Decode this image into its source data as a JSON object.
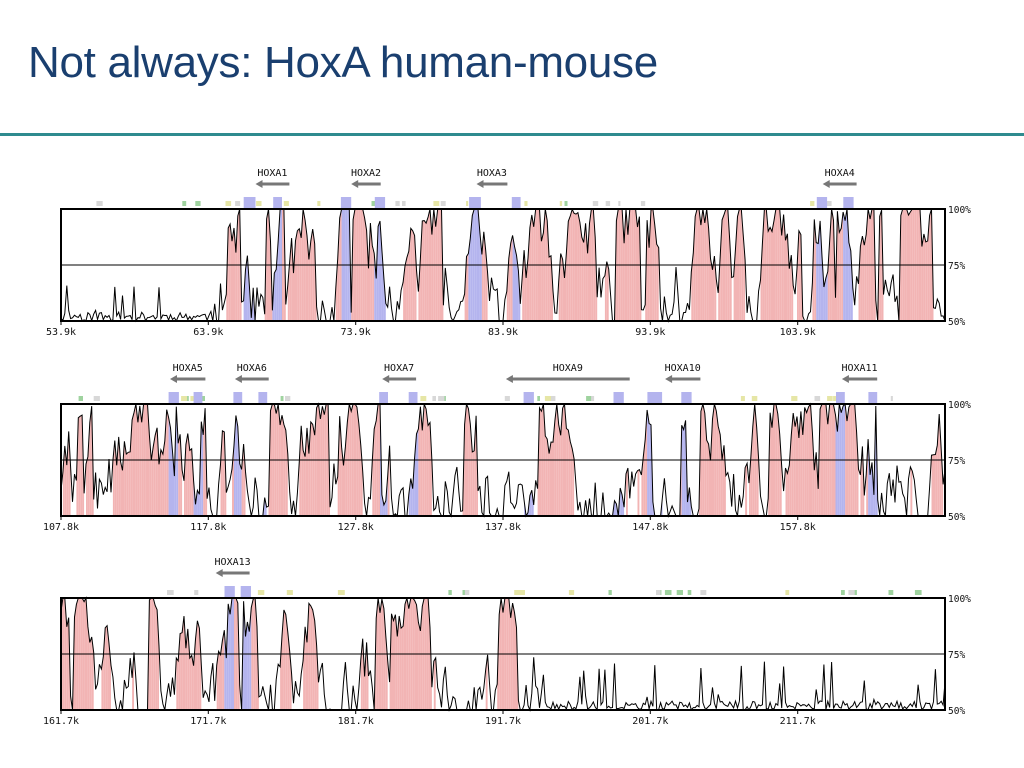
{
  "slide": {
    "title": "Not always: HoxA human-mouse"
  },
  "colors": {
    "title": "#1a3f6f",
    "rule": "#2e8b8f",
    "coding_exon": "#b4b4ee",
    "conserved_noncoding": "#f2b4b4",
    "utr": "#bfe8ee",
    "line": "#000000"
  },
  "chart_data": {
    "type": "area",
    "description_units": "percent identity (VISTA plot), position in kb",
    "y_ticks": [
      "100%",
      "75%",
      "50%"
    ],
    "ylim": [
      50,
      100
    ],
    "panels": [
      {
        "x_ticks": [
          "53.9k",
          "63.9k",
          "73.9k",
          "83.9k",
          "93.9k",
          "103.9k"
        ],
        "xlim": [
          53.9,
          113.9
        ],
        "genes": [
          {
            "label": "HOXA1",
            "start": 69.4,
            "end": 67.1,
            "exons": [
              [
                68.3,
                68.9
              ],
              [
                66.3,
                67.1
              ]
            ]
          },
          {
            "label": "HOXA2",
            "start": 75.6,
            "end": 73.6,
            "exons": [
              [
                75.2,
                75.9
              ],
              [
                72.9,
                73.6
              ]
            ]
          },
          {
            "label": "HOXA3",
            "start": 84.2,
            "end": 82.1,
            "exons": [
              [
                84.5,
                85.1
              ],
              [
                81.6,
                82.4
              ]
            ]
          },
          {
            "label": "HOXA4",
            "start": 107.9,
            "end": 105.6,
            "exons": [
              [
                107.0,
                107.7
              ],
              [
                105.2,
                105.9
              ]
            ]
          }
        ],
        "profile_seed": 11,
        "low_region": [
          53.9,
          64.0
        ]
      },
      {
        "x_ticks": [
          "107.8k",
          "117.8k",
          "127.8k",
          "137.8k",
          "147.8k",
          "157.8k"
        ],
        "xlim": [
          107.8,
          167.8
        ],
        "genes": [
          {
            "label": "HOXA5",
            "start": 117.6,
            "end": 115.2,
            "exons": [
              [
                116.8,
                117.4
              ],
              [
                115.1,
                115.8
              ]
            ]
          },
          {
            "label": "HOXA6",
            "start": 121.9,
            "end": 119.6,
            "exons": [
              [
                121.2,
                121.8
              ],
              [
                119.5,
                120.1
              ]
            ]
          },
          {
            "label": "HOXA7",
            "start": 131.9,
            "end": 129.6,
            "exons": [
              [
                131.4,
                132.0
              ],
              [
                129.4,
                130.0
              ]
            ]
          },
          {
            "label": "HOXA9",
            "start": 146.4,
            "end": 138.0,
            "exons": [
              [
                145.3,
                146.0
              ],
              [
                139.2,
                139.9
              ]
            ]
          },
          {
            "label": "HOXA10",
            "start": 151.2,
            "end": 148.8,
            "exons": [
              [
                149.9,
                150.6
              ],
              [
                147.6,
                148.6
              ]
            ]
          },
          {
            "label": "HOXA11",
            "start": 163.2,
            "end": 160.8,
            "exons": [
              [
                162.6,
                163.2
              ],
              [
                160.4,
                161.0
              ]
            ]
          }
        ],
        "profile_seed": 29,
        "low_region": [
          0,
          0
        ]
      },
      {
        "x_ticks": [
          "161.7k",
          "171.7k",
          "181.7k",
          "191.7k",
          "201.7k",
          "211.7k"
        ],
        "xlim": [
          161.7,
          221.7
        ],
        "genes": [
          {
            "label": "HOXA13",
            "start": 174.5,
            "end": 172.2,
            "exons": [
              [
                172.8,
                173.5
              ],
              [
                173.9,
                174.6
              ]
            ]
          }
        ],
        "profile_seed": 47,
        "low_region": [
          194.5,
          221.7
        ]
      }
    ]
  }
}
